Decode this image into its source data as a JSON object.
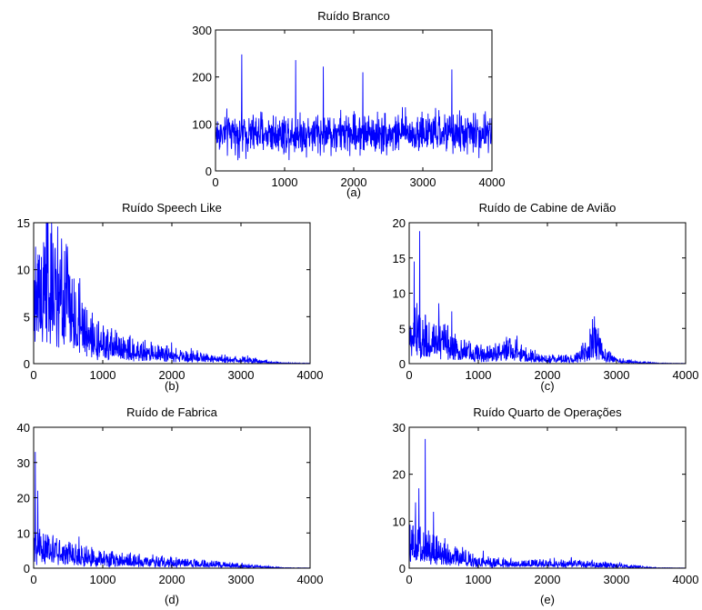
{
  "figure": {
    "line_color": "#0000ff",
    "axis_color": "#000000",
    "background": "#ffffff"
  },
  "chart_data": [
    {
      "id": "a",
      "type": "line",
      "title": "Ruído Branco",
      "caption": "(a)",
      "xlabel": "",
      "ylabel": "",
      "xlim": [
        0,
        4000
      ],
      "ylim": [
        0,
        300
      ],
      "xticks": [
        0,
        1000,
        2000,
        3000,
        4000
      ],
      "yticks": [
        0,
        100,
        200,
        300
      ],
      "grid": false,
      "profile": {
        "kind": "white",
        "mean": 80,
        "spread": 38,
        "floor": 2,
        "ceiling": 248,
        "peaks": [
          [
            380,
            248
          ],
          [
            1160,
            236
          ],
          [
            1560,
            222
          ],
          [
            2130,
            210
          ],
          [
            3420,
            216
          ]
        ]
      }
    },
    {
      "id": "b",
      "type": "line",
      "title": "Ruído Speech Like",
      "caption": "(b)",
      "xlabel": "",
      "ylabel": "",
      "xlim": [
        0,
        4000
      ],
      "ylim": [
        0,
        15
      ],
      "xticks": [
        0,
        1000,
        2000,
        3000,
        4000
      ],
      "yticks": [
        0,
        5,
        10,
        15
      ],
      "grid": false,
      "profile": {
        "kind": "decay",
        "envelope": [
          [
            0,
            6.5
          ],
          [
            200,
            7.5
          ],
          [
            400,
            6.5
          ],
          [
            600,
            4.5
          ],
          [
            800,
            2.6
          ],
          [
            1000,
            1.9
          ],
          [
            1500,
            1.2
          ],
          [
            2000,
            0.8
          ],
          [
            2500,
            0.55
          ],
          [
            3000,
            0.35
          ],
          [
            3400,
            0.15
          ],
          [
            3600,
            0.05
          ],
          [
            4000,
            0.02
          ]
        ],
        "peaks": [
          [
            250,
            11.8
          ],
          [
            150,
            10.5
          ],
          [
            380,
            10.2
          ],
          [
            100,
            10
          ],
          [
            520,
            8.2
          ]
        ]
      }
    },
    {
      "id": "c",
      "type": "line",
      "title": "Ruído de Cabine de Avião",
      "caption": "(c)",
      "xlabel": "",
      "ylabel": "",
      "xlim": [
        0,
        4000
      ],
      "ylim": [
        0,
        20
      ],
      "xticks": [
        0,
        1000,
        2000,
        3000,
        4000
      ],
      "yticks": [
        0,
        5,
        10,
        15,
        20
      ],
      "grid": false,
      "profile": {
        "kind": "decay",
        "envelope": [
          [
            0,
            3.5
          ],
          [
            200,
            3.2
          ],
          [
            500,
            2.6
          ],
          [
            800,
            1.6
          ],
          [
            1100,
            1.1
          ],
          [
            1300,
            1.6
          ],
          [
            1450,
            1.9
          ],
          [
            1700,
            1.0
          ],
          [
            2000,
            0.6
          ],
          [
            2400,
            0.6
          ],
          [
            2600,
            1.8
          ],
          [
            2680,
            3.2
          ],
          [
            2800,
            1.2
          ],
          [
            3000,
            0.4
          ],
          [
            3400,
            0.12
          ],
          [
            3600,
            0.05
          ],
          [
            4000,
            0.02
          ]
        ],
        "peaks": [
          [
            150,
            18.8
          ],
          [
            70,
            14.5
          ],
          [
            110,
            8.6
          ],
          [
            430,
            5.9
          ],
          [
            2660,
            5.1
          ]
        ]
      }
    },
    {
      "id": "d",
      "type": "line",
      "title": "Ruído de Fabrica",
      "caption": "(d)",
      "xlabel": "",
      "ylabel": "",
      "xlim": [
        0,
        4000
      ],
      "ylim": [
        0,
        40
      ],
      "xticks": [
        0,
        1000,
        2000,
        3000,
        4000
      ],
      "yticks": [
        0,
        10,
        20,
        30,
        40
      ],
      "grid": false,
      "profile": {
        "kind": "decay",
        "envelope": [
          [
            0,
            5
          ],
          [
            200,
            4.5
          ],
          [
            600,
            3.2
          ],
          [
            1000,
            2.2
          ],
          [
            1500,
            1.8
          ],
          [
            2000,
            1.4
          ],
          [
            2500,
            1.0
          ],
          [
            3000,
            0.6
          ],
          [
            3400,
            0.25
          ],
          [
            3600,
            0.08
          ],
          [
            4000,
            0.03
          ]
        ],
        "peaks": [
          [
            25,
            33
          ],
          [
            60,
            22
          ],
          [
            200,
            9.5
          ],
          [
            330,
            8.5
          ]
        ]
      }
    },
    {
      "id": "e",
      "type": "line",
      "title": "Ruído Quarto de Operações",
      "caption": "(e)",
      "xlabel": "",
      "ylabel": "",
      "xlim": [
        0,
        4000
      ],
      "ylim": [
        0,
        30
      ],
      "xticks": [
        0,
        1000,
        2000,
        3000,
        4000
      ],
      "yticks": [
        0,
        10,
        20,
        30
      ],
      "grid": false,
      "profile": {
        "kind": "decay",
        "envelope": [
          [
            0,
            4
          ],
          [
            200,
            4.5
          ],
          [
            400,
            3.5
          ],
          [
            700,
            2.2
          ],
          [
            1000,
            1.2
          ],
          [
            1500,
            0.9
          ],
          [
            2000,
            0.9
          ],
          [
            2500,
            0.8
          ],
          [
            3000,
            0.5
          ],
          [
            3400,
            0.2
          ],
          [
            3600,
            0.06
          ],
          [
            4000,
            0.02
          ]
        ],
        "peaks": [
          [
            230,
            27.5
          ],
          [
            140,
            17
          ],
          [
            90,
            14
          ],
          [
            350,
            12
          ]
        ]
      }
    }
  ]
}
